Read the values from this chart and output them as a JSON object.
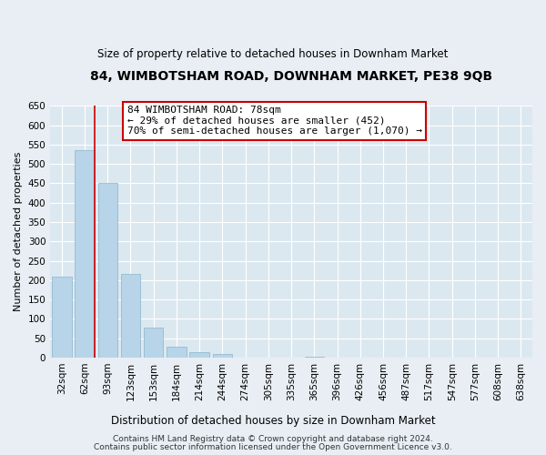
{
  "title": "84, WIMBOTSHAM ROAD, DOWNHAM MARKET, PE38 9QB",
  "subtitle": "Size of property relative to detached houses in Downham Market",
  "xlabel": "Distribution of detached houses by size in Downham Market",
  "ylabel": "Number of detached properties",
  "footer_line1": "Contains HM Land Registry data © Crown copyright and database right 2024.",
  "footer_line2": "Contains public sector information licensed under the Open Government Licence v3.0.",
  "bar_labels": [
    "32sqm",
    "62sqm",
    "93sqm",
    "123sqm",
    "153sqm",
    "184sqm",
    "214sqm",
    "244sqm",
    "274sqm",
    "305sqm",
    "335sqm",
    "365sqm",
    "396sqm",
    "426sqm",
    "456sqm",
    "487sqm",
    "517sqm",
    "547sqm",
    "577sqm",
    "608sqm",
    "638sqm"
  ],
  "bar_heights": [
    210,
    535,
    452,
    215,
    78,
    28,
    15,
    10,
    0,
    0,
    0,
    2,
    0,
    0,
    0,
    0,
    1,
    0,
    0,
    1,
    0
  ],
  "bar_color": "#b8d4e8",
  "bar_edge_color": "#8ab4cc",
  "vline_x_idx": 1,
  "vline_color": "#cc0000",
  "ylim": [
    0,
    650
  ],
  "yticks": [
    0,
    50,
    100,
    150,
    200,
    250,
    300,
    350,
    400,
    450,
    500,
    550,
    600,
    650
  ],
  "annotation_title": "84 WIMBOTSHAM ROAD: 78sqm",
  "annotation_line1": "← 29% of detached houses are smaller (452)",
  "annotation_line2": "70% of semi-detached houses are larger (1,070) →",
  "annotation_box_color": "#ffffff",
  "annotation_box_edge": "#cc0000",
  "bg_color": "#e8eef4",
  "plot_bg_color": "#dce8f0",
  "grid_color": "#ffffff",
  "title_fontsize": 10,
  "subtitle_fontsize": 8.5,
  "ylabel_fontsize": 8,
  "tick_fontsize": 7.5,
  "annotation_fontsize": 8,
  "footer_fontsize": 6.5
}
